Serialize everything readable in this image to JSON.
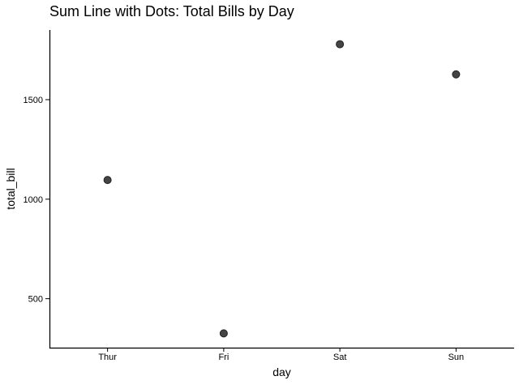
{
  "chart_data": {
    "type": "scatter",
    "title": "Sum Line with Dots: Total Bills by Day",
    "xlabel": "day",
    "ylabel": "total_bill",
    "categories": [
      "Thur",
      "Fri",
      "Sat",
      "Sun"
    ],
    "values": [
      1096.33,
      325.88,
      1778.4,
      1627.16
    ],
    "ylim": [
      250,
      1850
    ],
    "yticks": [
      500,
      1000,
      1500
    ],
    "grid": false,
    "colors": {
      "marker": "#3a3a3a",
      "axis": "#000000",
      "background": "#ffffff"
    }
  }
}
